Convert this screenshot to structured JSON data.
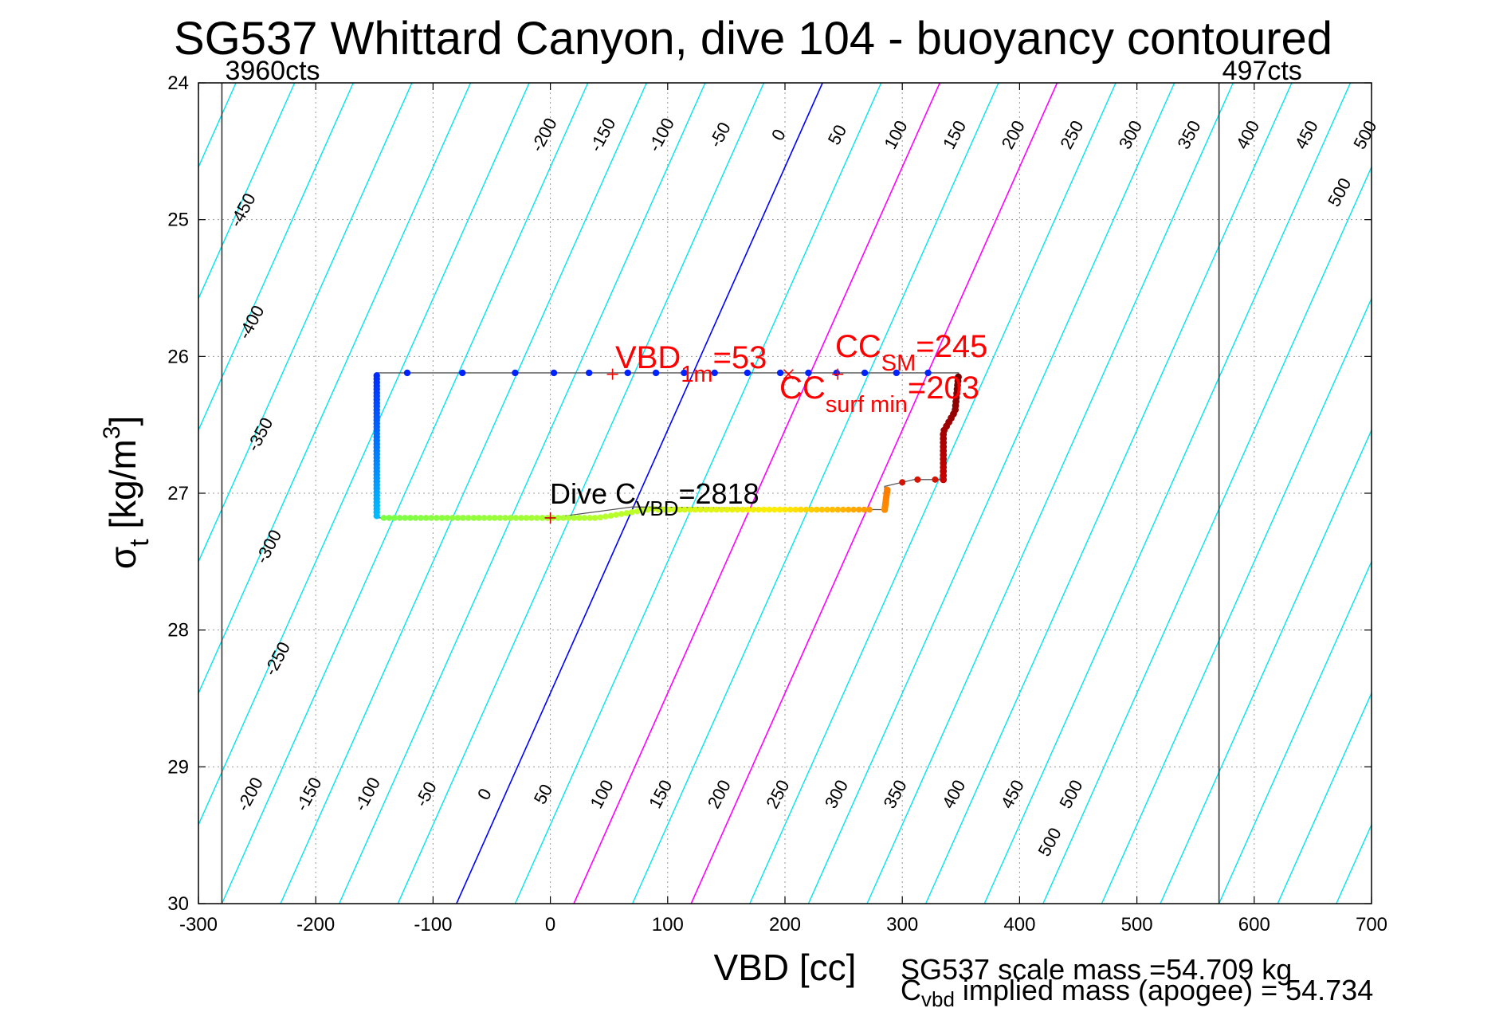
{
  "chart_data": {
    "type": "scatter",
    "title": "SG537 Whittard Canyon, dive 104 - buoyancy contoured",
    "xlabel": "VBD [cc]",
    "ylabel": {
      "main": "σ",
      "sub": "t",
      "rest_open": " [kg/m",
      "sup": "3",
      "rest_close": "]"
    },
    "xlim": [
      -300,
      700
    ],
    "ylim": [
      24,
      30
    ],
    "y_reversed": true,
    "grid": true,
    "x_ticks": [
      -300,
      -200,
      -100,
      0,
      100,
      200,
      300,
      400,
      500,
      600,
      700
    ],
    "y_ticks": [
      24,
      25,
      26,
      27,
      28,
      29,
      30
    ],
    "vertical_limits": [
      {
        "x": -280,
        "label": "3960cts"
      },
      {
        "x": 570,
        "label": "497cts"
      }
    ],
    "buoyancy_contour_step": 50,
    "contour_offsets_top": [
      -200,
      -150,
      -100,
      -50,
      0,
      50,
      100,
      150,
      200,
      250,
      300,
      350,
      400,
      450,
      500
    ],
    "contour_offsets_bottom": [
      -200,
      -150,
      -100,
      -50,
      0,
      50,
      100,
      150,
      200,
      250,
      300,
      350,
      400,
      450,
      500
    ],
    "contour_offsets_left": [
      -450,
      -400,
      -350,
      -300,
      -250
    ],
    "colors": {
      "contour": "#00e5ee",
      "zero_contour": "#0000ff",
      "highlight_contour": "#ff00ff",
      "annotation_red": "#ff0000",
      "grid": "#9a9a9a"
    },
    "annotations": {
      "vbd_1m": {
        "main": "VBD",
        "sub": "1m",
        "rest": "=53",
        "marker_x": 53,
        "marker_y": 26.13
      },
      "cc_sm": {
        "main": "CC",
        "sub": "SM",
        "rest": "=245",
        "marker_x": 245,
        "marker_y": 26.13
      },
      "cc_surf_min": {
        "main": "CC",
        "sub": "surf min",
        "rest": "=203",
        "marker_x": 203,
        "marker_y": 26.13
      },
      "dive_cvbd": {
        "main": "Dive C",
        "sub": "VBD",
        "rest": "=2818",
        "marker_x": 0,
        "marker_y": 27.18
      }
    },
    "series": {
      "path": [
        [
          -148,
          26.12
        ],
        [
          -148,
          27.18
        ],
        [
          0,
          27.18
        ],
        [
          70,
          27.1
        ],
        [
          285,
          27.12
        ],
        [
          285,
          26.95
        ],
        [
          310,
          26.9
        ],
        [
          335,
          26.9
        ],
        [
          335,
          26.55
        ],
        [
          345,
          26.4
        ],
        [
          348,
          26.12
        ],
        [
          -148,
          26.12
        ]
      ],
      "surface_points_x": [
        -122,
        -75,
        -30,
        3,
        33,
        66,
        90,
        114,
        140,
        168,
        196,
        220,
        244,
        268,
        295,
        322
      ],
      "surface_points_y": 26.12
    }
  },
  "footer": {
    "scale_mass": "SG537 scale mass =54.709 kg",
    "cvbd_main": "C",
    "cvbd_sub": "vbd",
    "cvbd_rest": " implied mass (apogee) = 54.734"
  }
}
